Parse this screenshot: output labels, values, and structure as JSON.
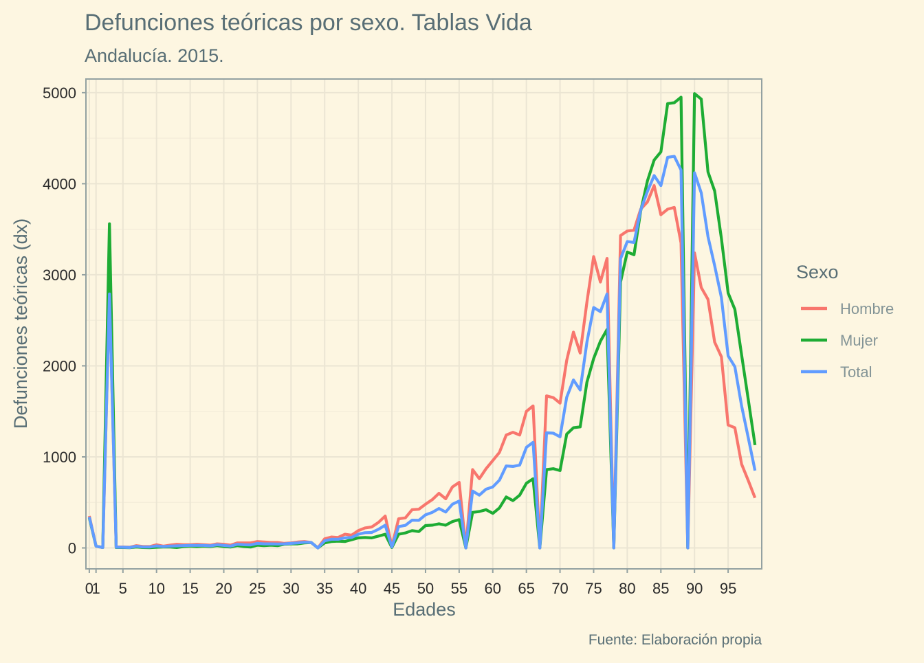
{
  "title": "Defunciones teóricas por sexo. Tablas Vida",
  "subtitle": "Andalucía. 2015.",
  "caption": "Fuente: Elaboración propia",
  "chart_data": {
    "type": "line",
    "xlabel": "Edades",
    "ylabel": "Defunciones teóricas (dx)",
    "xlim": [
      -0.5,
      100
    ],
    "ylim": [
      -230,
      5150
    ],
    "x_ticks": [
      0,
      1,
      5,
      10,
      15,
      20,
      25,
      30,
      35,
      40,
      45,
      50,
      55,
      60,
      65,
      70,
      75,
      80,
      85,
      90,
      95
    ],
    "x_tick_labels": [
      "0",
      "1",
      "5",
      "10",
      "15",
      "20",
      "25",
      "30",
      "35",
      "40",
      "45",
      "50",
      "55",
      "60",
      "65",
      "70",
      "75",
      "80",
      "85",
      "90",
      "95"
    ],
    "y_ticks": [
      0,
      1000,
      2000,
      3000,
      4000,
      5000
    ],
    "y_tick_labels": [
      "0",
      "1000",
      "2000",
      "3000",
      "4000",
      "5000"
    ],
    "grid": true,
    "legend": {
      "title": "Sexo",
      "position": "right"
    },
    "series": [
      {
        "name": "Hombre",
        "color": "#f8766d",
        "points": [
          [
            0,
            350
          ],
          [
            1,
            20
          ],
          [
            2,
            5
          ],
          [
            3,
            2800
          ],
          [
            4,
            10
          ],
          [
            5,
            10
          ],
          [
            6,
            8
          ],
          [
            7,
            25
          ],
          [
            8,
            15
          ],
          [
            9,
            15
          ],
          [
            10,
            35
          ],
          [
            11,
            20
          ],
          [
            12,
            30
          ],
          [
            13,
            40
          ],
          [
            14,
            35
          ],
          [
            15,
            35
          ],
          [
            16,
            40
          ],
          [
            17,
            35
          ],
          [
            18,
            30
          ],
          [
            19,
            45
          ],
          [
            20,
            40
          ],
          [
            21,
            30
          ],
          [
            22,
            55
          ],
          [
            23,
            55
          ],
          [
            24,
            55
          ],
          [
            25,
            70
          ],
          [
            26,
            65
          ],
          [
            27,
            60
          ],
          [
            28,
            60
          ],
          [
            29,
            50
          ],
          [
            30,
            55
          ],
          [
            31,
            65
          ],
          [
            32,
            70
          ],
          [
            33,
            60
          ],
          [
            34,
            0
          ],
          [
            35,
            100
          ],
          [
            36,
            120
          ],
          [
            37,
            115
          ],
          [
            38,
            150
          ],
          [
            39,
            140
          ],
          [
            40,
            190
          ],
          [
            41,
            220
          ],
          [
            42,
            230
          ],
          [
            43,
            280
          ],
          [
            44,
            350
          ],
          [
            45,
            15
          ],
          [
            46,
            320
          ],
          [
            47,
            330
          ],
          [
            48,
            420
          ],
          [
            49,
            425
          ],
          [
            50,
            480
          ],
          [
            51,
            530
          ],
          [
            52,
            600
          ],
          [
            53,
            540
          ],
          [
            54,
            670
          ],
          [
            55,
            720
          ],
          [
            56,
            0
          ],
          [
            57,
            860
          ],
          [
            58,
            760
          ],
          [
            59,
            870
          ],
          [
            60,
            960
          ],
          [
            61,
            1050
          ],
          [
            62,
            1240
          ],
          [
            63,
            1270
          ],
          [
            64,
            1240
          ],
          [
            65,
            1500
          ],
          [
            66,
            1560
          ],
          [
            67,
            0
          ],
          [
            68,
            1670
          ],
          [
            69,
            1650
          ],
          [
            70,
            1590
          ],
          [
            71,
            2060
          ],
          [
            72,
            2370
          ],
          [
            73,
            2140
          ],
          [
            74,
            2700
          ],
          [
            75,
            3200
          ],
          [
            76,
            2920
          ],
          [
            77,
            3180
          ],
          [
            78,
            0
          ],
          [
            79,
            3430
          ],
          [
            80,
            3480
          ],
          [
            81,
            3490
          ],
          [
            82,
            3720
          ],
          [
            83,
            3800
          ],
          [
            84,
            3980
          ],
          [
            85,
            3660
          ],
          [
            86,
            3720
          ],
          [
            87,
            3740
          ],
          [
            88,
            3350
          ],
          [
            89,
            0
          ],
          [
            90,
            3240
          ],
          [
            91,
            2860
          ],
          [
            92,
            2730
          ],
          [
            93,
            2260
          ],
          [
            94,
            2100
          ],
          [
            95,
            1350
          ],
          [
            96,
            1320
          ],
          [
            97,
            920
          ],
          [
            98,
            740
          ],
          [
            99,
            550
          ]
        ]
      },
      {
        "name": "Mujer",
        "color": "#1eac34",
        "points": [
          [
            0,
            330
          ],
          [
            1,
            20
          ],
          [
            2,
            5
          ],
          [
            3,
            3560
          ],
          [
            4,
            5
          ],
          [
            5,
            5
          ],
          [
            6,
            3
          ],
          [
            7,
            10
          ],
          [
            8,
            5
          ],
          [
            9,
            3
          ],
          [
            10,
            8
          ],
          [
            11,
            10
          ],
          [
            12,
            10
          ],
          [
            13,
            5
          ],
          [
            14,
            15
          ],
          [
            15,
            20
          ],
          [
            16,
            15
          ],
          [
            17,
            20
          ],
          [
            18,
            15
          ],
          [
            19,
            25
          ],
          [
            20,
            15
          ],
          [
            21,
            10
          ],
          [
            22,
            25
          ],
          [
            23,
            15
          ],
          [
            24,
            10
          ],
          [
            25,
            30
          ],
          [
            26,
            25
          ],
          [
            27,
            30
          ],
          [
            28,
            25
          ],
          [
            29,
            40
          ],
          [
            30,
            45
          ],
          [
            31,
            45
          ],
          [
            32,
            55
          ],
          [
            33,
            60
          ],
          [
            34,
            0
          ],
          [
            35,
            55
          ],
          [
            36,
            70
          ],
          [
            37,
            75
          ],
          [
            38,
            70
          ],
          [
            39,
            90
          ],
          [
            40,
            110
          ],
          [
            41,
            115
          ],
          [
            42,
            110
          ],
          [
            43,
            130
          ],
          [
            44,
            150
          ],
          [
            45,
            5
          ],
          [
            46,
            150
          ],
          [
            47,
            165
          ],
          [
            48,
            190
          ],
          [
            49,
            180
          ],
          [
            50,
            245
          ],
          [
            51,
            250
          ],
          [
            52,
            265
          ],
          [
            53,
            250
          ],
          [
            54,
            290
          ],
          [
            55,
            310
          ],
          [
            56,
            0
          ],
          [
            57,
            390
          ],
          [
            58,
            400
          ],
          [
            59,
            420
          ],
          [
            60,
            380
          ],
          [
            61,
            440
          ],
          [
            62,
            560
          ],
          [
            63,
            520
          ],
          [
            64,
            580
          ],
          [
            65,
            710
          ],
          [
            66,
            760
          ],
          [
            67,
            0
          ],
          [
            68,
            860
          ],
          [
            69,
            870
          ],
          [
            70,
            850
          ],
          [
            71,
            1250
          ],
          [
            72,
            1320
          ],
          [
            73,
            1330
          ],
          [
            74,
            1820
          ],
          [
            75,
            2080
          ],
          [
            76,
            2270
          ],
          [
            77,
            2400
          ],
          [
            78,
            0
          ],
          [
            79,
            2920
          ],
          [
            80,
            3250
          ],
          [
            81,
            3220
          ],
          [
            82,
            3700
          ],
          [
            83,
            4030
          ],
          [
            84,
            4260
          ],
          [
            85,
            4350
          ],
          [
            86,
            4880
          ],
          [
            87,
            4890
          ],
          [
            88,
            4950
          ],
          [
            89,
            0
          ],
          [
            90,
            4990
          ],
          [
            91,
            4930
          ],
          [
            92,
            4130
          ],
          [
            93,
            3920
          ],
          [
            94,
            3400
          ],
          [
            95,
            2800
          ],
          [
            96,
            2620
          ],
          [
            97,
            2120
          ],
          [
            98,
            1630
          ],
          [
            99,
            1130
          ]
        ]
      },
      {
        "name": "Total",
        "color": "#619cff",
        "points": [
          [
            0,
            340
          ],
          [
            1,
            20
          ],
          [
            2,
            5
          ],
          [
            3,
            2790
          ],
          [
            4,
            8
          ],
          [
            5,
            8
          ],
          [
            6,
            5
          ],
          [
            7,
            18
          ],
          [
            8,
            10
          ],
          [
            9,
            10
          ],
          [
            10,
            22
          ],
          [
            11,
            15
          ],
          [
            12,
            20
          ],
          [
            13,
            23
          ],
          [
            14,
            25
          ],
          [
            15,
            28
          ],
          [
            16,
            28
          ],
          [
            17,
            28
          ],
          [
            18,
            23
          ],
          [
            19,
            35
          ],
          [
            20,
            28
          ],
          [
            21,
            20
          ],
          [
            22,
            40
          ],
          [
            23,
            35
          ],
          [
            24,
            33
          ],
          [
            25,
            50
          ],
          [
            26,
            45
          ],
          [
            27,
            45
          ],
          [
            28,
            43
          ],
          [
            29,
            45
          ],
          [
            30,
            50
          ],
          [
            31,
            55
          ],
          [
            32,
            63
          ],
          [
            33,
            60
          ],
          [
            34,
            0
          ],
          [
            35,
            78
          ],
          [
            36,
            95
          ],
          [
            37,
            95
          ],
          [
            38,
            110
          ],
          [
            39,
            115
          ],
          [
            40,
            150
          ],
          [
            41,
            168
          ],
          [
            42,
            170
          ],
          [
            43,
            205
          ],
          [
            44,
            250
          ],
          [
            45,
            10
          ],
          [
            46,
            235
          ],
          [
            47,
            248
          ],
          [
            48,
            305
          ],
          [
            49,
            303
          ],
          [
            50,
            363
          ],
          [
            51,
            390
          ],
          [
            52,
            433
          ],
          [
            53,
            395
          ],
          [
            54,
            480
          ],
          [
            55,
            515
          ],
          [
            56,
            0
          ],
          [
            57,
            625
          ],
          [
            58,
            580
          ],
          [
            59,
            645
          ],
          [
            60,
            670
          ],
          [
            61,
            745
          ],
          [
            62,
            900
          ],
          [
            63,
            895
          ],
          [
            64,
            910
          ],
          [
            65,
            1105
          ],
          [
            66,
            1160
          ],
          [
            67,
            0
          ],
          [
            68,
            1265
          ],
          [
            69,
            1260
          ],
          [
            70,
            1220
          ],
          [
            71,
            1655
          ],
          [
            72,
            1845
          ],
          [
            73,
            1735
          ],
          [
            74,
            2260
          ],
          [
            75,
            2640
          ],
          [
            76,
            2595
          ],
          [
            77,
            2790
          ],
          [
            78,
            0
          ],
          [
            79,
            3175
          ],
          [
            80,
            3365
          ],
          [
            81,
            3355
          ],
          [
            82,
            3710
          ],
          [
            83,
            3915
          ],
          [
            84,
            4090
          ],
          [
            85,
            3980
          ],
          [
            86,
            4290
          ],
          [
            87,
            4300
          ],
          [
            88,
            4150
          ],
          [
            89,
            0
          ],
          [
            90,
            4120
          ],
          [
            91,
            3900
          ],
          [
            92,
            3420
          ],
          [
            93,
            3100
          ],
          [
            94,
            2750
          ],
          [
            95,
            2110
          ],
          [
            96,
            1990
          ],
          [
            97,
            1560
          ],
          [
            98,
            1210
          ],
          [
            99,
            850
          ]
        ]
      }
    ]
  }
}
